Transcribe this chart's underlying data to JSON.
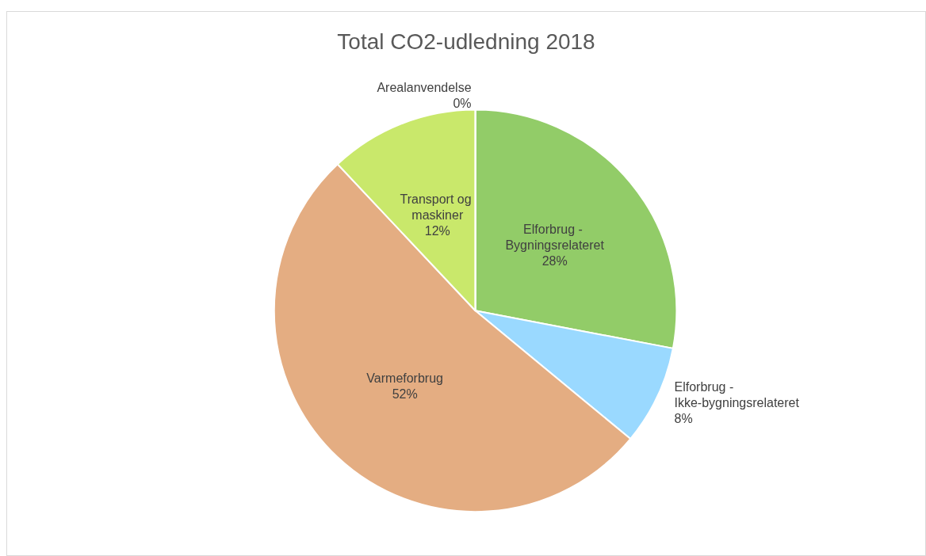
{
  "chart_data": {
    "type": "pie",
    "title": "Total CO2-udledning 2018",
    "categories": [
      "Elforbrug - Bygningsrelateret",
      "Elforbrug - Ikke-bygningsrelateret",
      "Varmeforbrug",
      "Transport og maskiner",
      "Arealanvendelse"
    ],
    "values": [
      28,
      8,
      52,
      12,
      0
    ],
    "colors": [
      "#92cc68",
      "#9ad9ff",
      "#e4ad82",
      "#c9e86b",
      "#a5a5a5"
    ],
    "value_labels": [
      "28%",
      "8%",
      "52%",
      "12%",
      "0%"
    ]
  }
}
